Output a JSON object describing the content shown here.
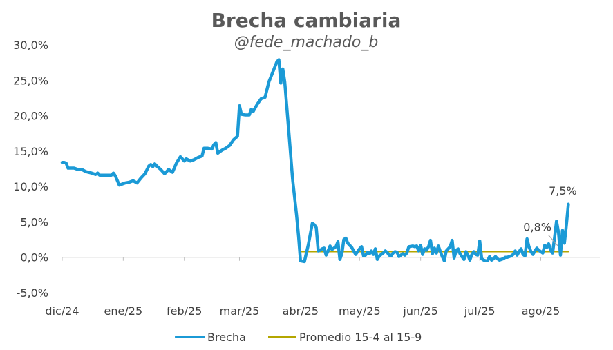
{
  "chart_data": {
    "type": "line",
    "title": "Brecha cambiaria",
    "subtitle": "@fede_machado_b",
    "xlabel": "",
    "ylabel": "",
    "ylim": [
      -5,
      30
    ],
    "yticks": [
      "-5,0%",
      "0,0%",
      "5,0%",
      "10,0%",
      "15,0%",
      "20,0%",
      "25,0%",
      "30,0%"
    ],
    "ytick_values": [
      -5,
      0,
      5,
      10,
      15,
      20,
      25,
      30
    ],
    "xticks": [
      "dic/24",
      "ene/25",
      "feb/25",
      "mar/25",
      "abr/25",
      "may/25",
      "jun/25",
      "jul/25",
      "ago/25"
    ],
    "xtick_dates": [
      "2024-12-01",
      "2025-01-01",
      "2025-02-01",
      "2025-03-01",
      "2025-04-01",
      "2025-05-01",
      "2025-06-01",
      "2025-07-01",
      "2025-08-01"
    ],
    "xlim": [
      "2024-12-01",
      "2025-08-31"
    ],
    "grid": false,
    "legend_position": "bottom",
    "series": [
      {
        "name": "Brecha",
        "color": "#1B9AD6",
        "points": [
          [
            "2024-12-01",
            13.4
          ],
          [
            "2024-12-02",
            13.4
          ],
          [
            "2024-12-03",
            13.3
          ],
          [
            "2024-12-04",
            12.6
          ],
          [
            "2024-12-05",
            12.6
          ],
          [
            "2024-12-07",
            12.6
          ],
          [
            "2024-12-09",
            12.4
          ],
          [
            "2024-12-11",
            12.4
          ],
          [
            "2024-12-13",
            12.1
          ],
          [
            "2024-12-16",
            11.9
          ],
          [
            "2024-12-18",
            11.7
          ],
          [
            "2024-12-19",
            11.9
          ],
          [
            "2024-12-20",
            11.6
          ],
          [
            "2024-12-23",
            11.6
          ],
          [
            "2024-12-26",
            11.6
          ],
          [
            "2024-12-27",
            11.9
          ],
          [
            "2024-12-28",
            11.5
          ],
          [
            "2024-12-30",
            10.2
          ],
          [
            "2025-01-02",
            10.5
          ],
          [
            "2025-01-04",
            10.6
          ],
          [
            "2025-01-06",
            10.8
          ],
          [
            "2025-01-08",
            10.5
          ],
          [
            "2025-01-10",
            11.2
          ],
          [
            "2025-01-12",
            11.8
          ],
          [
            "2025-01-14",
            12.9
          ],
          [
            "2025-01-15",
            13.1
          ],
          [
            "2025-01-16",
            12.8
          ],
          [
            "2025-01-17",
            13.2
          ],
          [
            "2025-01-18",
            12.9
          ],
          [
            "2025-01-20",
            12.4
          ],
          [
            "2025-01-22",
            11.8
          ],
          [
            "2025-01-24",
            12.4
          ],
          [
            "2025-01-26",
            12.0
          ],
          [
            "2025-01-28",
            13.3
          ],
          [
            "2025-01-30",
            14.2
          ],
          [
            "2025-02-01",
            13.6
          ],
          [
            "2025-02-02",
            13.9
          ],
          [
            "2025-02-04",
            13.6
          ],
          [
            "2025-02-06",
            13.8
          ],
          [
            "2025-02-08",
            14.1
          ],
          [
            "2025-02-10",
            14.3
          ],
          [
            "2025-02-11",
            15.4
          ],
          [
            "2025-02-13",
            15.4
          ],
          [
            "2025-02-15",
            15.3
          ],
          [
            "2025-02-16",
            15.9
          ],
          [
            "2025-02-17",
            16.2
          ],
          [
            "2025-02-18",
            14.7
          ],
          [
            "2025-02-20",
            15.1
          ],
          [
            "2025-02-22",
            15.4
          ],
          [
            "2025-02-24",
            15.8
          ],
          [
            "2025-02-26",
            16.6
          ],
          [
            "2025-02-28",
            17.1
          ],
          [
            "2025-03-01",
            21.4
          ],
          [
            "2025-03-02",
            20.2
          ],
          [
            "2025-03-04",
            20.1
          ],
          [
            "2025-03-06",
            20.1
          ],
          [
            "2025-03-07",
            20.9
          ],
          [
            "2025-03-08",
            20.6
          ],
          [
            "2025-03-10",
            21.6
          ],
          [
            "2025-03-12",
            22.4
          ],
          [
            "2025-03-14",
            22.6
          ],
          [
            "2025-03-16",
            24.8
          ],
          [
            "2025-03-18",
            26.2
          ],
          [
            "2025-03-20",
            27.6
          ],
          [
            "2025-03-21",
            27.9
          ],
          [
            "2025-03-22",
            24.6
          ],
          [
            "2025-03-23",
            26.6
          ],
          [
            "2025-03-24",
            24.8
          ],
          [
            "2025-03-26",
            18.0
          ],
          [
            "2025-03-28",
            11.0
          ],
          [
            "2025-03-30",
            6.0
          ],
          [
            "2025-03-31",
            3.0
          ],
          [
            "2025-04-01",
            -0.5
          ],
          [
            "2025-04-03",
            -0.6
          ],
          [
            "2025-04-05",
            1.8
          ],
          [
            "2025-04-07",
            4.8
          ],
          [
            "2025-04-08",
            4.6
          ],
          [
            "2025-04-09",
            4.2
          ],
          [
            "2025-04-10",
            0.9
          ],
          [
            "2025-04-11",
            1.0
          ],
          [
            "2025-04-12",
            1.2
          ],
          [
            "2025-04-13",
            1.3
          ],
          [
            "2025-04-14",
            0.3
          ],
          [
            "2025-04-15",
            0.9
          ],
          [
            "2025-04-16",
            1.6
          ],
          [
            "2025-04-17",
            1.1
          ],
          [
            "2025-04-19",
            1.5
          ],
          [
            "2025-04-20",
            2.2
          ],
          [
            "2025-04-21",
            -0.3
          ],
          [
            "2025-04-22",
            0.5
          ],
          [
            "2025-04-23",
            2.5
          ],
          [
            "2025-04-24",
            2.7
          ],
          [
            "2025-04-25",
            2.0
          ],
          [
            "2025-04-27",
            1.4
          ],
          [
            "2025-04-28",
            0.9
          ],
          [
            "2025-04-29",
            0.4
          ],
          [
            "2025-04-30",
            0.8
          ],
          [
            "2025-05-01",
            1.2
          ],
          [
            "2025-05-02",
            1.5
          ],
          [
            "2025-05-03",
            0.2
          ],
          [
            "2025-05-04",
            0.3
          ],
          [
            "2025-05-05",
            0.7
          ],
          [
            "2025-05-06",
            0.5
          ],
          [
            "2025-05-07",
            0.9
          ],
          [
            "2025-05-08",
            0.4
          ],
          [
            "2025-05-09",
            1.2
          ],
          [
            "2025-05-10",
            -0.3
          ],
          [
            "2025-05-11",
            0.2
          ],
          [
            "2025-05-13",
            0.6
          ],
          [
            "2025-05-14",
            0.9
          ],
          [
            "2025-05-15",
            0.7
          ],
          [
            "2025-05-16",
            0.3
          ],
          [
            "2025-05-17",
            0.2
          ],
          [
            "2025-05-18",
            0.6
          ],
          [
            "2025-05-19",
            0.8
          ],
          [
            "2025-05-20",
            0.7
          ],
          [
            "2025-05-21",
            0.1
          ],
          [
            "2025-05-22",
            0.3
          ],
          [
            "2025-05-23",
            0.5
          ],
          [
            "2025-05-24",
            0.3
          ],
          [
            "2025-05-25",
            0.6
          ],
          [
            "2025-05-26",
            1.5
          ],
          [
            "2025-05-28",
            1.6
          ],
          [
            "2025-05-29",
            1.5
          ],
          [
            "2025-05-30",
            1.6
          ],
          [
            "2025-05-31",
            0.9
          ],
          [
            "2025-06-01",
            1.7
          ],
          [
            "2025-06-02",
            0.4
          ],
          [
            "2025-06-03",
            1.2
          ],
          [
            "2025-06-04",
            1.0
          ],
          [
            "2025-06-05",
            1.5
          ],
          [
            "2025-06-06",
            2.4
          ],
          [
            "2025-06-07",
            0.5
          ],
          [
            "2025-06-08",
            1.3
          ],
          [
            "2025-06-09",
            0.6
          ],
          [
            "2025-06-10",
            1.6
          ],
          [
            "2025-06-11",
            0.8
          ],
          [
            "2025-06-12",
            0.1
          ],
          [
            "2025-06-13",
            -0.5
          ],
          [
            "2025-06-14",
            0.9
          ],
          [
            "2025-06-16",
            1.5
          ],
          [
            "2025-06-17",
            2.4
          ],
          [
            "2025-06-18",
            -0.1
          ],
          [
            "2025-06-19",
            0.9
          ],
          [
            "2025-06-20",
            1.2
          ],
          [
            "2025-06-21",
            0.5
          ],
          [
            "2025-06-22",
            0.1
          ],
          [
            "2025-06-23",
            -0.3
          ],
          [
            "2025-06-24",
            0.8
          ],
          [
            "2025-06-25",
            0.3
          ],
          [
            "2025-06-26",
            -0.4
          ],
          [
            "2025-06-27",
            0.4
          ],
          [
            "2025-06-28",
            0.8
          ],
          [
            "2025-06-29",
            0.4
          ],
          [
            "2025-06-30",
            0.3
          ],
          [
            "2025-07-01",
            2.3
          ],
          [
            "2025-07-02",
            -0.2
          ],
          [
            "2025-07-03",
            -0.4
          ],
          [
            "2025-07-04",
            -0.5
          ],
          [
            "2025-07-05",
            -0.5
          ],
          [
            "2025-07-06",
            0.1
          ],
          [
            "2025-07-07",
            -0.4
          ],
          [
            "2025-07-08",
            -0.2
          ],
          [
            "2025-07-09",
            0.1
          ],
          [
            "2025-07-10",
            -0.2
          ],
          [
            "2025-07-11",
            -0.4
          ],
          [
            "2025-07-12",
            -0.3
          ],
          [
            "2025-07-13",
            -0.2
          ],
          [
            "2025-07-14",
            0.0
          ],
          [
            "2025-07-15",
            0.0
          ],
          [
            "2025-07-16",
            0.1
          ],
          [
            "2025-07-17",
            0.2
          ],
          [
            "2025-07-18",
            0.4
          ],
          [
            "2025-07-19",
            0.9
          ],
          [
            "2025-07-20",
            0.3
          ],
          [
            "2025-07-21",
            0.8
          ],
          [
            "2025-07-22",
            1.2
          ],
          [
            "2025-07-23",
            0.4
          ],
          [
            "2025-07-24",
            0.2
          ],
          [
            "2025-07-25",
            2.6
          ],
          [
            "2025-07-26",
            1.5
          ],
          [
            "2025-07-27",
            0.8
          ],
          [
            "2025-07-28",
            0.4
          ],
          [
            "2025-07-29",
            0.9
          ],
          [
            "2025-07-30",
            1.3
          ],
          [
            "2025-07-31",
            1.0
          ],
          [
            "2025-08-01",
            0.8
          ],
          [
            "2025-08-02",
            0.6
          ],
          [
            "2025-08-03",
            1.7
          ],
          [
            "2025-08-04",
            1.4
          ],
          [
            "2025-08-05",
            1.9
          ],
          [
            "2025-08-06",
            1.0
          ],
          [
            "2025-08-07",
            0.6
          ],
          [
            "2025-08-08",
            2.8
          ],
          [
            "2025-08-09",
            5.1
          ],
          [
            "2025-08-10",
            3.5
          ],
          [
            "2025-08-11",
            0.3
          ],
          [
            "2025-08-12",
            3.8
          ],
          [
            "2025-08-13",
            2.0
          ],
          [
            "2025-08-14",
            4.6
          ],
          [
            "2025-08-15",
            7.5
          ]
        ]
      },
      {
        "name": "Promedio 15-4 al 15-9",
        "color": "#B4A600",
        "points": [
          [
            "2025-04-01",
            0.8
          ],
          [
            "2025-08-15",
            0.8
          ]
        ]
      }
    ],
    "annotations": [
      {
        "text": "7,5%",
        "x": "2025-08-15",
        "y": 7.5
      },
      {
        "text": "0,8%",
        "x": "2025-08-07",
        "y": 0.8
      }
    ]
  }
}
